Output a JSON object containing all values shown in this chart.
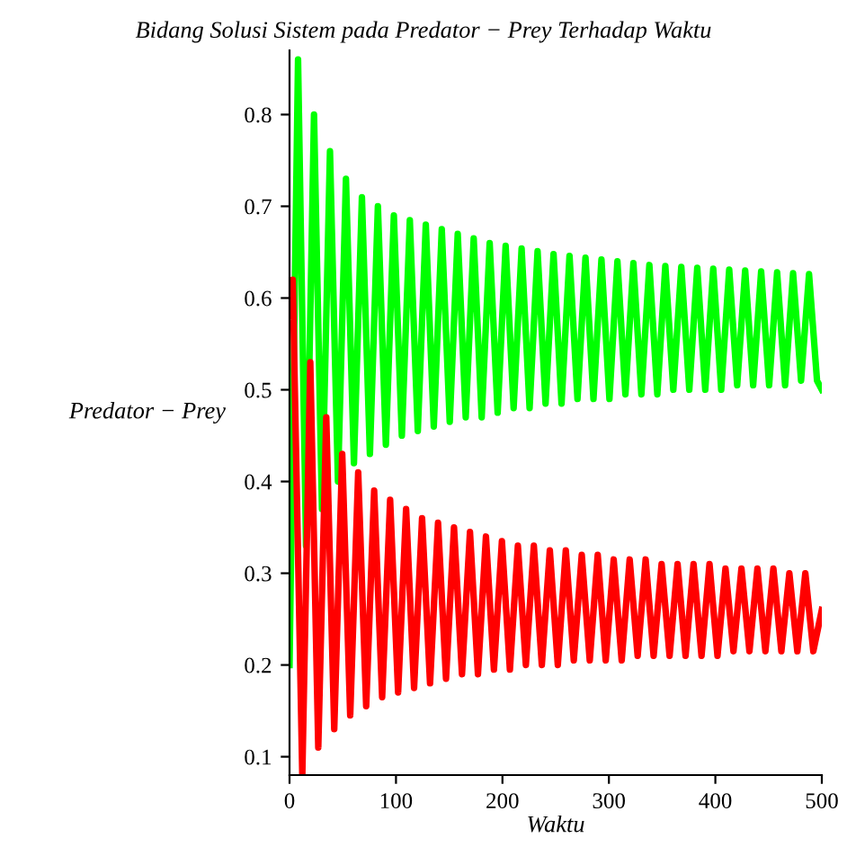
{
  "chart_data": {
    "type": "line",
    "title": "Bidang Solusi Sistem pada Predator − Prey Terhadap Waktu",
    "xlabel": "Waktu",
    "ylabel": "Predator − Prey",
    "xlim": [
      0,
      500
    ],
    "xticks": [
      0,
      100,
      200,
      300,
      400,
      500
    ],
    "ylim": [
      0.08,
      0.87
    ],
    "yticks": [
      0.1,
      0.2,
      0.3,
      0.4,
      0.5,
      0.6,
      0.7,
      0.8
    ],
    "grid": false,
    "marker": "none",
    "line_style": "solid",
    "series": [
      {
        "color": "#00ff00",
        "x": [
          0,
          8,
          15.5,
          23,
          30.5,
          38,
          45.5,
          53,
          60.5,
          68,
          75.5,
          83,
          90.5,
          98,
          105.5,
          113,
          120.5,
          128,
          135.5,
          143,
          150.5,
          158,
          165.5,
          173,
          180.5,
          188,
          195.5,
          203,
          210.5,
          218,
          225.5,
          233,
          240.5,
          248,
          255.5,
          263,
          270.5,
          278,
          285.5,
          293,
          300.5,
          308,
          315.5,
          323,
          330.5,
          338,
          345.5,
          353,
          360.5,
          368,
          375.5,
          383,
          390.5,
          398,
          405.5,
          413,
          420.5,
          428,
          435.5,
          443,
          450.5,
          458,
          465.5,
          473,
          480.5,
          488,
          495.5,
          500
        ],
        "values": [
          0.2,
          0.86,
          0.33,
          0.8,
          0.37,
          0.76,
          0.4,
          0.73,
          0.42,
          0.71,
          0.43,
          0.7,
          0.44,
          0.69,
          0.45,
          0.685,
          0.455,
          0.68,
          0.46,
          0.675,
          0.465,
          0.67,
          0.47,
          0.665,
          0.47,
          0.66,
          0.475,
          0.657,
          0.48,
          0.654,
          0.48,
          0.651,
          0.485,
          0.648,
          0.485,
          0.646,
          0.49,
          0.644,
          0.49,
          0.642,
          0.49,
          0.64,
          0.495,
          0.638,
          0.495,
          0.636,
          0.495,
          0.635,
          0.5,
          0.634,
          0.5,
          0.633,
          0.5,
          0.632,
          0.5,
          0.631,
          0.505,
          0.63,
          0.505,
          0.629,
          0.505,
          0.628,
          0.505,
          0.627,
          0.51,
          0.626,
          0.51,
          0.5
        ]
      },
      {
        "color": "#ff0000",
        "x": [
          0,
          3,
          12,
          19.5,
          27,
          34.5,
          42,
          49.5,
          57,
          64.5,
          72,
          79.5,
          87,
          94.5,
          102,
          109.5,
          117,
          124.5,
          132,
          139.5,
          147,
          154.5,
          162,
          169.5,
          177,
          184.5,
          192,
          199.5,
          207,
          214.5,
          222,
          229.5,
          237,
          244.5,
          252,
          259.5,
          267,
          274.5,
          282,
          289.5,
          297,
          304.5,
          312,
          319.5,
          327,
          334.5,
          342,
          349.5,
          357,
          364.5,
          372,
          379.5,
          387,
          394.5,
          402,
          409.5,
          417,
          424.5,
          432,
          439.5,
          447,
          454.5,
          462,
          469.5,
          477,
          484.5,
          492,
          500
        ],
        "values": [
          0.58,
          0.62,
          0.08,
          0.53,
          0.11,
          0.47,
          0.13,
          0.43,
          0.145,
          0.41,
          0.155,
          0.39,
          0.165,
          0.38,
          0.17,
          0.37,
          0.175,
          0.36,
          0.18,
          0.355,
          0.185,
          0.35,
          0.19,
          0.345,
          0.19,
          0.34,
          0.195,
          0.335,
          0.195,
          0.33,
          0.2,
          0.33,
          0.2,
          0.325,
          0.2,
          0.325,
          0.205,
          0.32,
          0.205,
          0.32,
          0.205,
          0.315,
          0.205,
          0.315,
          0.21,
          0.315,
          0.21,
          0.31,
          0.21,
          0.31,
          0.21,
          0.31,
          0.21,
          0.31,
          0.21,
          0.305,
          0.215,
          0.305,
          0.215,
          0.305,
          0.215,
          0.305,
          0.215,
          0.3,
          0.215,
          0.3,
          0.215,
          0.26
        ]
      }
    ]
  }
}
